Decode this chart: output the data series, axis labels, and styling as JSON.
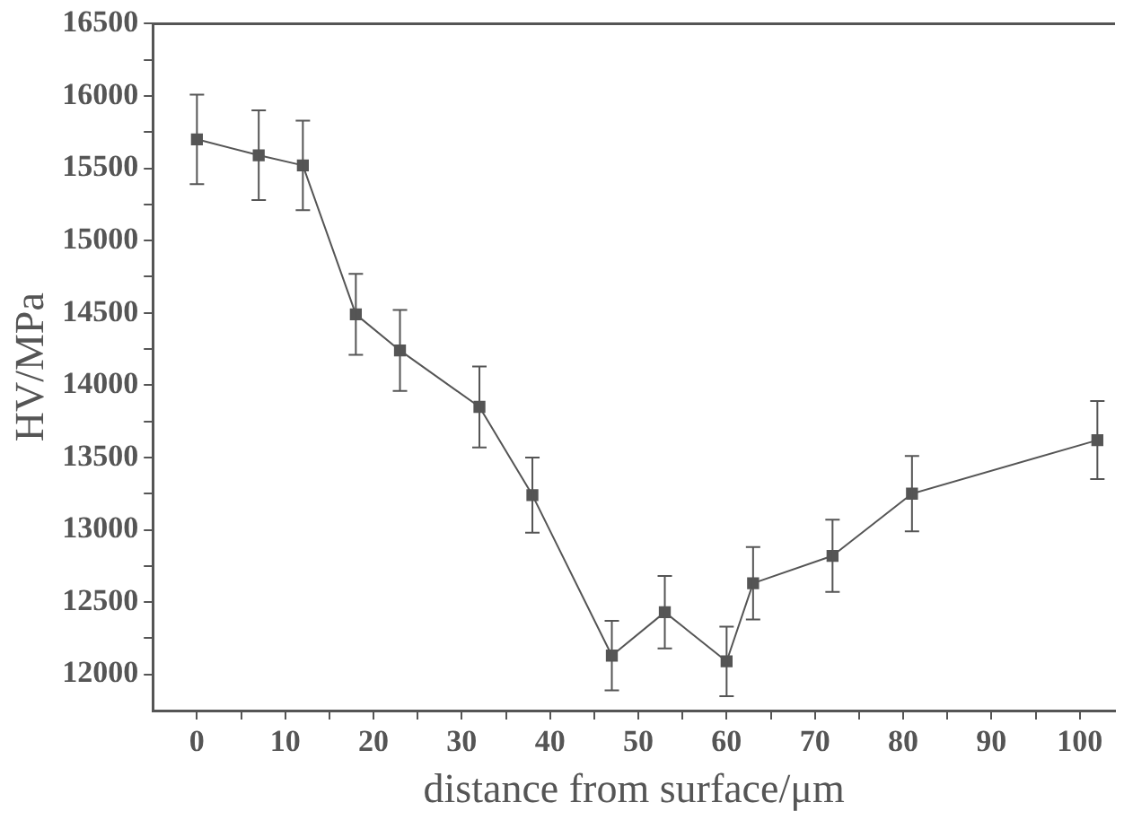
{
  "chart_data": {
    "type": "line",
    "xlabel": "distance from surface/μm",
    "ylabel": "HV/MPa",
    "x": [
      0,
      7,
      12,
      18,
      23,
      32,
      38,
      47,
      53,
      60,
      63,
      72,
      81,
      102
    ],
    "values": [
      15700,
      15590,
      15520,
      14490,
      14240,
      13850,
      13240,
      12130,
      12430,
      12090,
      12630,
      12820,
      13250,
      13620
    ],
    "errors": [
      310,
      310,
      310,
      280,
      280,
      280,
      260,
      240,
      250,
      240,
      250,
      250,
      260,
      270
    ],
    "color": "#555555",
    "marker": "square",
    "line_style": "solid",
    "grid": false,
    "legend": false,
    "xlim": [
      -5,
      104
    ],
    "xticks": [
      0,
      {
        "value": 5,
        "label": null
      },
      10,
      {
        "value": 15,
        "label": null
      },
      20,
      {
        "value": 25,
        "label": null
      },
      30,
      {
        "value": 35,
        "label": null
      },
      40,
      {
        "value": 45,
        "label": null
      },
      50,
      {
        "value": 55,
        "label": null
      },
      60,
      {
        "value": 65,
        "label": null
      },
      70,
      {
        "value": 75,
        "label": null
      },
      80,
      {
        "value": 85,
        "label": null
      },
      90,
      {
        "value": 95,
        "label": null
      },
      100
    ],
    "ylim": [
      11750,
      16500
    ],
    "yticks": [
      12000,
      {
        "value": 12250,
        "label": null
      },
      12500,
      {
        "value": 12750,
        "label": null
      },
      13000,
      {
        "value": 13250,
        "label": null
      },
      13500,
      {
        "value": 13750,
        "label": null
      },
      14000,
      {
        "value": 14250,
        "label": null
      },
      14500,
      {
        "value": 14750,
        "label": null
      },
      15000,
      {
        "value": 15250,
        "label": null
      },
      15500,
      {
        "value": 15750,
        "label": null
      },
      16000,
      {
        "value": 16250,
        "label": null
      },
      16500
    ]
  }
}
